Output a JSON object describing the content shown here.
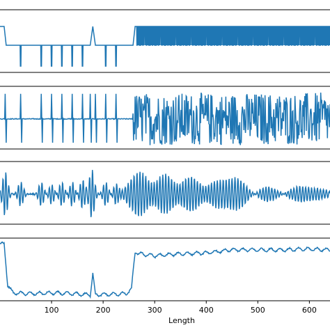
{
  "chart_data": [
    {
      "type": "line",
      "panel": "top",
      "x": [
        0,
        8,
        12,
        100,
        175,
        180,
        185,
        245,
        258,
        262,
        640
      ],
      "y": [
        0.9,
        0.9,
        0.0,
        0.0,
        0.0,
        0.9,
        0.0,
        0.0,
        0.0,
        0.9,
        0.9
      ],
      "spikes_down_at": [
        40,
        80,
        100,
        120,
        140,
        160,
        205,
        225
      ],
      "dense_square_wave_from": 265,
      "xlim": [
        0,
        640
      ],
      "ylim": [
        -1.3,
        1.7
      ],
      "color": "#1f77b4",
      "grid": false,
      "xticks_visible": false,
      "yticks_visible": false
    },
    {
      "type": "line",
      "panel": "second",
      "baseline": 0,
      "spikes_at": [
        10,
        40,
        80,
        100,
        120,
        140,
        160,
        175,
        185,
        205,
        225
      ],
      "noise_from": 258,
      "xlim": [
        0,
        640
      ],
      "ylim": [
        -1.2,
        1.3
      ],
      "color": "#1f77b4",
      "grid": false,
      "xticks_visible": false,
      "yticks_visible": false
    },
    {
      "type": "line",
      "panel": "third",
      "baseline": 0,
      "oscillation_bursts": [
        {
          "center": 10,
          "amp": 0.9
        },
        {
          "center": 40,
          "amp": 0.5
        },
        {
          "center": 80,
          "amp": 0.5
        },
        {
          "center": 100,
          "amp": 0.4
        },
        {
          "center": 120,
          "amp": 0.5
        },
        {
          "center": 140,
          "amp": 0.5
        },
        {
          "center": 160,
          "amp": 0.6
        },
        {
          "center": 178,
          "amp": 1.0
        },
        {
          "center": 205,
          "amp": 0.5
        },
        {
          "center": 225,
          "amp": 0.4
        },
        {
          "center": 270,
          "amp": 0.9
        },
        {
          "center": 320,
          "amp": 0.8
        },
        {
          "center": 370,
          "amp": 0.7
        },
        {
          "center": 420,
          "amp": 0.5
        },
        {
          "center": 460,
          "amp": 0.6
        },
        {
          "center": 520,
          "amp": 0.3
        },
        {
          "center": 580,
          "amp": 0.3
        },
        {
          "center": 620,
          "amp": 0.2
        }
      ],
      "xlim": [
        0,
        640
      ],
      "ylim": [
        -1.2,
        1.3
      ],
      "color": "#1f77b4",
      "grid": false,
      "xticks_visible": false,
      "yticks_visible": false
    },
    {
      "type": "line",
      "panel": "bottom",
      "x": [
        0,
        8,
        15,
        25,
        60,
        100,
        140,
        175,
        180,
        185,
        245,
        255,
        262,
        270,
        300,
        350,
        400,
        450,
        500,
        550,
        600,
        640
      ],
      "y": [
        0.45,
        0.45,
        -0.6,
        -0.8,
        -0.82,
        -0.8,
        -0.82,
        -0.85,
        -0.3,
        -0.85,
        -0.82,
        -0.7,
        0.25,
        0.2,
        0.15,
        0.2,
        0.22,
        0.3,
        0.3,
        0.3,
        0.32,
        0.3
      ],
      "xticks": [
        100,
        200,
        300,
        400,
        500,
        600
      ],
      "xlabel": "Length",
      "xlim": [
        0,
        640
      ],
      "ylim": [
        -1.0,
        0.6
      ],
      "color": "#1f77b4",
      "grid": false,
      "yticks_visible": false
    }
  ]
}
